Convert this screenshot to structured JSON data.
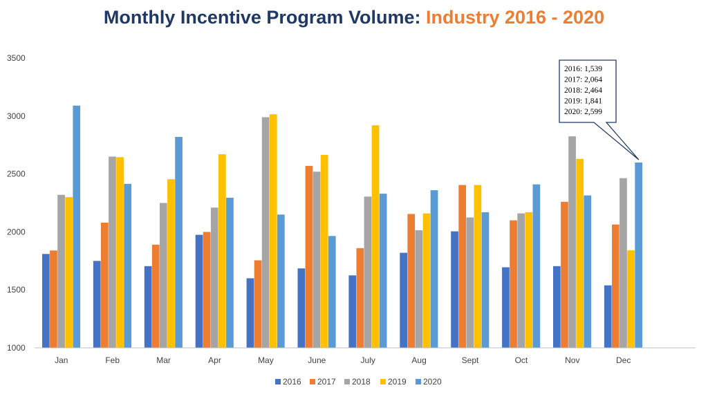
{
  "title": {
    "main": "Monthly Incentive Program Volume: ",
    "highlight": "Industry 2016 - 2020"
  },
  "colors": {
    "title_main": "#1F3864",
    "title_highlight": "#ED7D31"
  },
  "chart_data": {
    "type": "bar",
    "title": "Monthly Incentive Program Volume: Industry 2016 - 2020",
    "categories": [
      "Jan",
      "Feb",
      "Mar",
      "Apr",
      "May",
      "June",
      "July",
      "Aug",
      "Sept",
      "Oct",
      "Nov",
      "Dec"
    ],
    "ylim": [
      1000,
      3500
    ],
    "yticks": [
      1000,
      1500,
      2000,
      2500,
      3000,
      3500
    ],
    "grid": false,
    "legend_position": "bottom",
    "series": [
      {
        "name": "2016",
        "color": "#4472C4",
        "values": [
          1810,
          1750,
          1705,
          1975,
          1600,
          1685,
          1625,
          1820,
          2005,
          1695,
          1705,
          1539
        ]
      },
      {
        "name": "2017",
        "color": "#ED7D31",
        "values": [
          1840,
          2080,
          1890,
          2000,
          1755,
          2570,
          1860,
          2155,
          2405,
          2100,
          2260,
          2064
        ]
      },
      {
        "name": "2018",
        "color": "#A5A5A5",
        "values": [
          2320,
          2650,
          2250,
          2210,
          2990,
          2520,
          2305,
          2015,
          2125,
          2160,
          2825,
          2464
        ]
      },
      {
        "name": "2019",
        "color": "#FFC000",
        "values": [
          2300,
          2645,
          2455,
          2670,
          3015,
          2665,
          2920,
          2160,
          2405,
          2170,
          2630,
          1841
        ]
      },
      {
        "name": "2020",
        "color": "#5B9BD5",
        "values": [
          3090,
          2415,
          2820,
          2295,
          2150,
          1965,
          2330,
          2360,
          2170,
          2410,
          2315,
          2599
        ]
      }
    ],
    "annotation": {
      "category": "Dec",
      "lines": [
        "2016: 1,539",
        "2017: 2,064",
        "2018: 2,464",
        "2019: 1,841",
        "2020: 2,599"
      ]
    }
  }
}
